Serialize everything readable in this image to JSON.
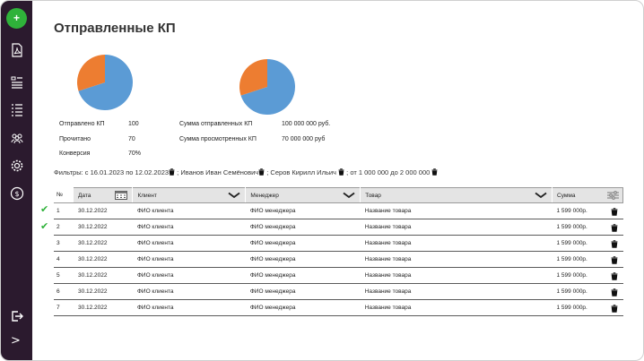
{
  "sidebar": {
    "add_label": "+",
    "icons": [
      "pdf-icon",
      "catalog-icon",
      "list-icon",
      "users-icon",
      "gear-icon",
      "money-icon",
      "logout-icon"
    ],
    "expand_label": ">"
  },
  "page": {
    "title": "Отправленные КП"
  },
  "colors": {
    "pie_blue": "#5b9bd5",
    "pie_orange": "#ed7d31",
    "check": "#2fb23a",
    "sidebar": "#2b1a2e"
  },
  "chart_data": [
    {
      "type": "pie",
      "series": [
        {
          "values": [
            70,
            30
          ]
        }
      ]
    },
    {
      "type": "pie",
      "series": [
        {
          "values": [
            70,
            30
          ]
        }
      ]
    }
  ],
  "stats_left": [
    {
      "label": "Отправлено КП",
      "value": "100"
    },
    {
      "label": "Прочитано",
      "value": "70"
    },
    {
      "label": "Конверсия",
      "value": "70%"
    }
  ],
  "stats_right": [
    {
      "label": "Сумма отправленных КП",
      "value": "100 000 000 руб."
    },
    {
      "label": "Сумма просмотренных КП",
      "value": "70 000 000 руб"
    }
  ],
  "filters": {
    "prefix": "Фильтры: с 16.01.2023 по 12.02.2023",
    "items": [
      "; Иванов Иван Семёнович",
      "; Серов Кирилл Ильич",
      "; от 1 000 000 до 2 000 000"
    ]
  },
  "table": {
    "headers": [
      "№",
      "Дата",
      "Клиент",
      "Менеджер",
      "Товар",
      "Сумма"
    ],
    "rows": [
      {
        "checked": true,
        "no": "1",
        "date": "30.12.2022",
        "client": "ФИО клиента",
        "manager": "ФИО менеджера",
        "product": "Название товара",
        "sum": "1 599 000р."
      },
      {
        "checked": true,
        "no": "2",
        "date": "30.12.2022",
        "client": "ФИО клиента",
        "manager": "ФИО менеджера",
        "product": "Название товара",
        "sum": "1 599 000р."
      },
      {
        "checked": false,
        "no": "3",
        "date": "30.12.2022",
        "client": "ФИО клиента",
        "manager": "ФИО менеджера",
        "product": "Название товара",
        "sum": "1 599 000р."
      },
      {
        "checked": false,
        "no": "4",
        "date": "30.12.2022",
        "client": "ФИО клиента",
        "manager": "ФИО менеджера",
        "product": "Название товара",
        "sum": "1 599 000р."
      },
      {
        "checked": false,
        "no": "5",
        "date": "30.12.2022",
        "client": "ФИО клиента",
        "manager": "ФИО менеджера",
        "product": "Название товара",
        "sum": "1 599 000р."
      },
      {
        "checked": false,
        "no": "6",
        "date": "30.12.2022",
        "client": "ФИО клиента",
        "manager": "ФИО менеджера",
        "product": "Название товара",
        "sum": "1 599 000р."
      },
      {
        "checked": false,
        "no": "7",
        "date": "30.12.2022",
        "client": "ФИО клиента",
        "manager": "ФИО менеджера",
        "product": "Название товара",
        "sum": "1 599 000р."
      }
    ]
  }
}
